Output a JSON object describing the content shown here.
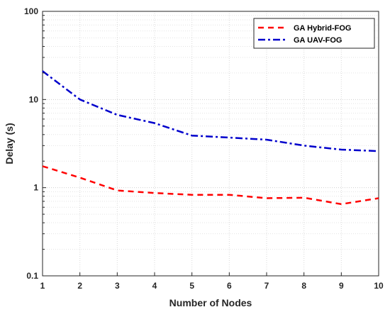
{
  "chart_data": {
    "type": "line",
    "xlabel": "Number of Nodes",
    "ylabel": "Delay (s)",
    "x": [
      1,
      2,
      3,
      4,
      5,
      6,
      7,
      8,
      9,
      10
    ],
    "xlim": [
      1,
      10
    ],
    "ylim": [
      0.1,
      100
    ],
    "yscale": "log",
    "xticks": [
      "1",
      "2",
      "3",
      "4",
      "5",
      "6",
      "7",
      "8",
      "9",
      "10"
    ],
    "yticks": [
      {
        "value": 0.1,
        "label": "0.1"
      },
      {
        "value": 1,
        "label": "1"
      },
      {
        "value": 10,
        "label": "10"
      },
      {
        "value": 100,
        "label": "100"
      }
    ],
    "grid": true,
    "legend_position": "top-right",
    "series": [
      {
        "name": "GA Hybrid-FOG",
        "color": "#ff0000",
        "style": "dashed",
        "values": [
          1.75,
          1.3,
          0.93,
          0.87,
          0.83,
          0.83,
          0.76,
          0.77,
          0.65,
          0.76
        ]
      },
      {
        "name": "GA UAV-FOG",
        "color": "#0000cc",
        "style": "dash-dot",
        "values": [
          21,
          10,
          6.7,
          5.4,
          3.9,
          3.7,
          3.5,
          3.0,
          2.7,
          2.6
        ]
      }
    ]
  }
}
